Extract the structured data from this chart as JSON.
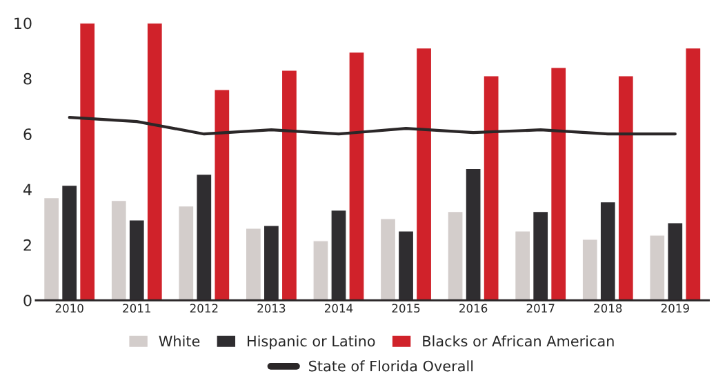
{
  "chart_data": {
    "type": "bar",
    "categories": [
      "2010",
      "2011",
      "2012",
      "2013",
      "2014",
      "2015",
      "2016",
      "2017",
      "2018",
      "2019"
    ],
    "series": [
      {
        "name": "White",
        "color": "#d3cdcb",
        "values": [
          3.7,
          3.6,
          3.4,
          2.6,
          2.15,
          2.95,
          3.2,
          2.5,
          2.2,
          2.35
        ]
      },
      {
        "name": "Hispanic or Latino",
        "color": "#2f2d30",
        "values": [
          4.15,
          2.9,
          4.55,
          2.7,
          3.25,
          2.5,
          4.75,
          3.2,
          3.55,
          2.8
        ]
      },
      {
        "name": "Blacks or African American",
        "color": "#d0222a",
        "values": [
          10,
          10,
          7.6,
          8.3,
          8.95,
          9.1,
          8.1,
          8.4,
          8.1,
          9.1
        ]
      },
      {
        "name": "State of Florida Overall",
        "type": "line",
        "color": "#2b2728",
        "values": [
          6.6,
          6.45,
          6.0,
          6.15,
          6.0,
          6.2,
          6.05,
          6.15,
          6.0,
          6.0
        ]
      }
    ],
    "ylim": [
      0,
      10
    ],
    "yticks": [
      0,
      2,
      4,
      6,
      8,
      10
    ],
    "grid": false,
    "legend": "bottom"
  }
}
